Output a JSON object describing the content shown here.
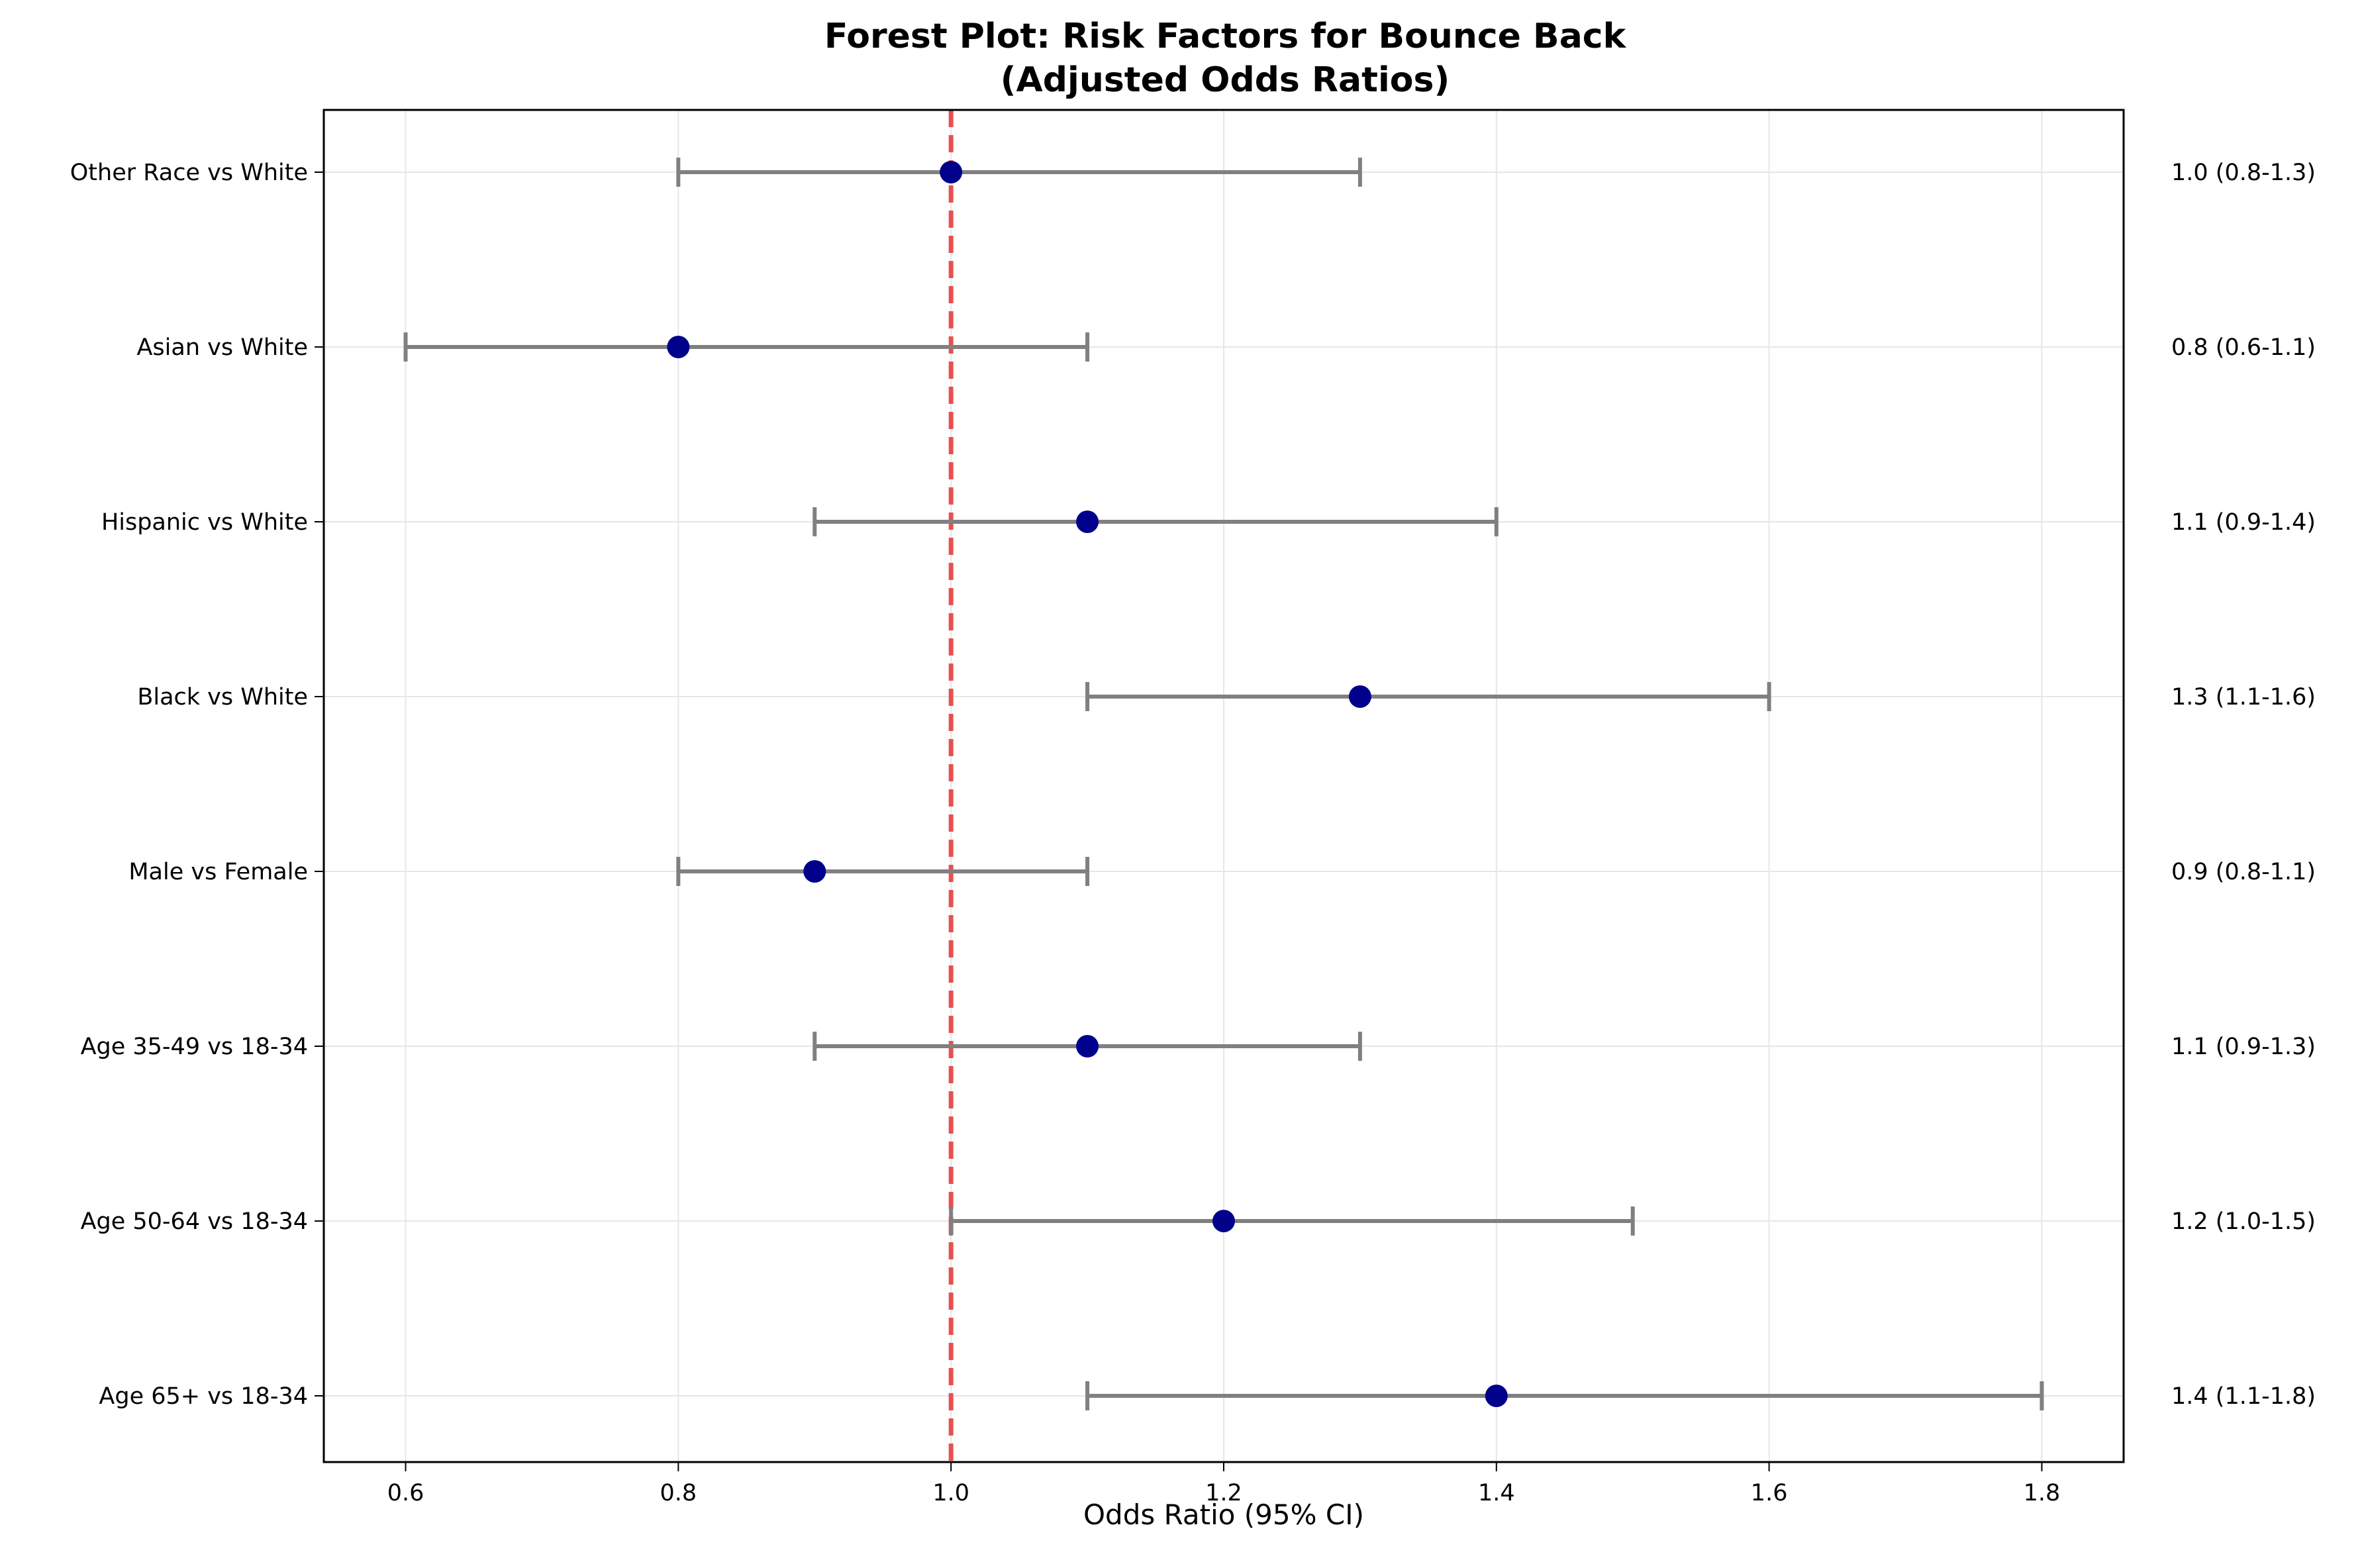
{
  "chart_data": {
    "type": "scatter",
    "title_lines": [
      "Forest Plot: Risk Factors for Bounce Back",
      "(Adjusted Odds Ratios)"
    ],
    "xlabel": "Odds Ratio (95% CI)",
    "ylabel": "",
    "xlim": [
      0.54,
      1.86
    ],
    "x_ticks": [
      0.6,
      0.8,
      1.0,
      1.2,
      1.4,
      1.6,
      1.8
    ],
    "x_tick_labels": [
      "0.6",
      "0.8",
      "1.0",
      "1.2",
      "1.4",
      "1.6",
      "1.8"
    ],
    "reference_line": {
      "x": 1.0,
      "style": "dashed",
      "color": "#e83e3e"
    },
    "grid": true,
    "legend": "none",
    "colors": {
      "point": "#00008b",
      "ci": "#808080",
      "grid": "#e6e6e6"
    },
    "rows": [
      {
        "label": "Other Race vs White",
        "or": 1.0,
        "lo": 0.8,
        "hi": 1.3,
        "annotation": "1.0 (0.8-1.3)"
      },
      {
        "label": "Asian vs White",
        "or": 0.8,
        "lo": 0.6,
        "hi": 1.1,
        "annotation": "0.8 (0.6-1.1)"
      },
      {
        "label": "Hispanic vs White",
        "or": 1.1,
        "lo": 0.9,
        "hi": 1.4,
        "annotation": "1.1 (0.9-1.4)"
      },
      {
        "label": "Black vs White",
        "or": 1.3,
        "lo": 1.1,
        "hi": 1.6,
        "annotation": "1.3 (1.1-1.6)"
      },
      {
        "label": "Male vs Female",
        "or": 0.9,
        "lo": 0.8,
        "hi": 1.1,
        "annotation": "0.9 (0.8-1.1)"
      },
      {
        "label": "Age 35-49 vs 18-34",
        "or": 1.1,
        "lo": 0.9,
        "hi": 1.3,
        "annotation": "1.1 (0.9-1.3)"
      },
      {
        "label": "Age 50-64 vs 18-34",
        "or": 1.2,
        "lo": 1.0,
        "hi": 1.5,
        "annotation": "1.2 (1.0-1.5)"
      },
      {
        "label": "Age 65+ vs 18-34",
        "or": 1.4,
        "lo": 1.1,
        "hi": 1.8,
        "annotation": "1.4 (1.1-1.8)"
      }
    ]
  }
}
